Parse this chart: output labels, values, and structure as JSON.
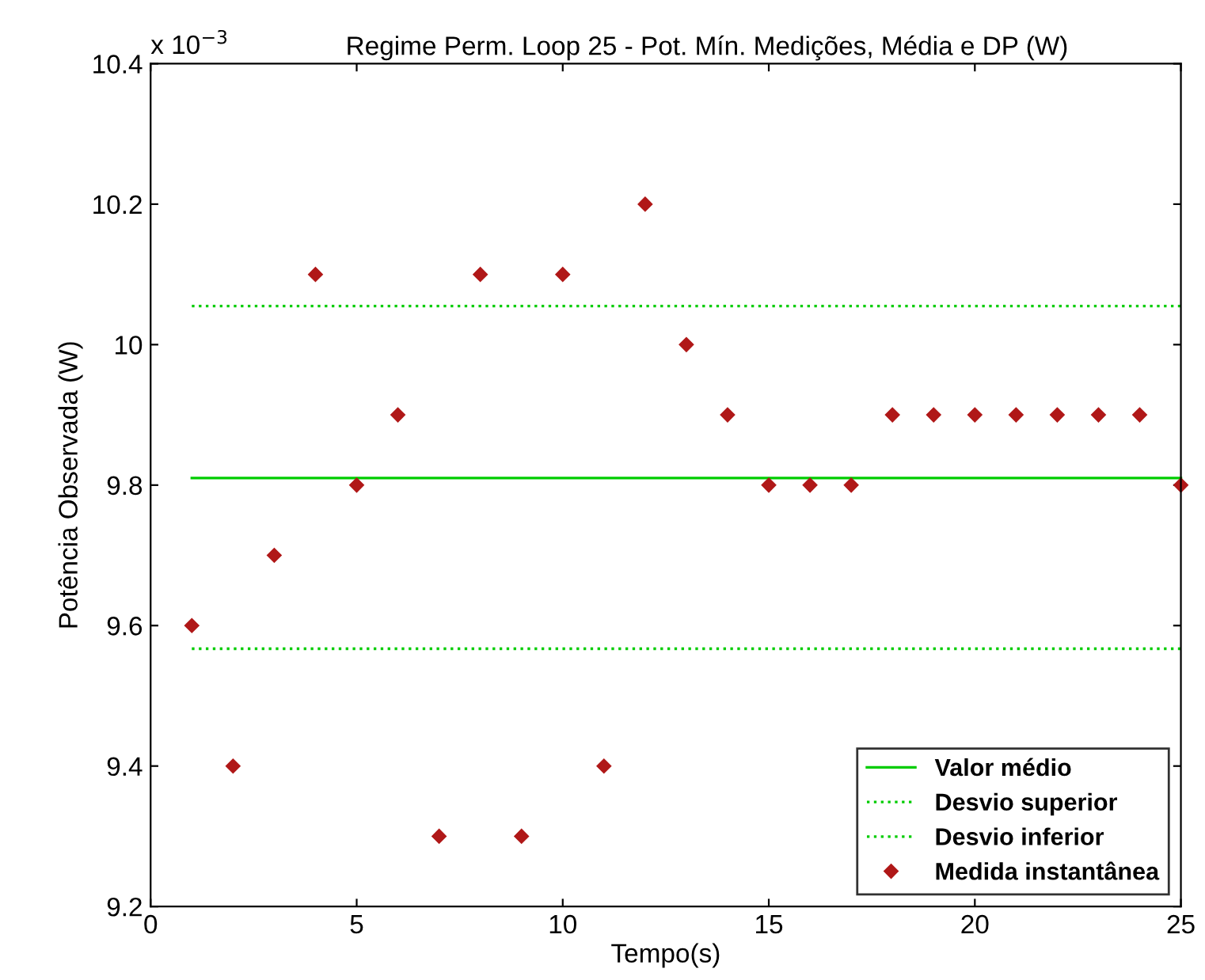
{
  "chart_data": {
    "type": "scatter",
    "title": "Regime Perm. Loop 25 - Pot. Mín. Medições, Média e DP (W)",
    "xlabel": "Tempo(s)",
    "ylabel": "Potência Observada (W)",
    "annotations": [
      "x 10$^{−3}$"
    ],
    "x": [
      1,
      2,
      3,
      4,
      5,
      6,
      7,
      8,
      9,
      10,
      11,
      12,
      13,
      14,
      15,
      16,
      17,
      18,
      19,
      20,
      21,
      22,
      23,
      24,
      25
    ],
    "series": [
      {
        "name": "Valor médio",
        "type": "line",
        "color": "#00cc00",
        "line_style": "solid",
        "marker": "none",
        "values": [
          9.81,
          9.81,
          9.81,
          9.81,
          9.81,
          9.81,
          9.81,
          9.81,
          9.81,
          9.81,
          9.81,
          9.81,
          9.81,
          9.81,
          9.81,
          9.81,
          9.81,
          9.81,
          9.81,
          9.81,
          9.81,
          9.81,
          9.81,
          9.81,
          9.81
        ]
      },
      {
        "name": "Desvio superior",
        "type": "line",
        "color": "#00cc00",
        "line_style": "dotted",
        "marker": "none",
        "values": [
          10.055,
          10.055,
          10.055,
          10.055,
          10.055,
          10.055,
          10.055,
          10.055,
          10.055,
          10.055,
          10.055,
          10.055,
          10.055,
          10.055,
          10.055,
          10.055,
          10.055,
          10.055,
          10.055,
          10.055,
          10.055,
          10.055,
          10.055,
          10.055,
          10.055
        ]
      },
      {
        "name": "Desvio inferior",
        "type": "line",
        "color": "#00cc00",
        "line_style": "dotted",
        "marker": "none",
        "values": [
          9.567,
          9.567,
          9.567,
          9.567,
          9.567,
          9.567,
          9.567,
          9.567,
          9.567,
          9.567,
          9.567,
          9.567,
          9.567,
          9.567,
          9.567,
          9.567,
          9.567,
          9.567,
          9.567,
          9.567,
          9.567,
          9.567,
          9.567,
          9.567,
          9.567
        ]
      },
      {
        "name": "Medida instantânea",
        "color": "#b01818",
        "marker": "diamond",
        "values": [
          9.6,
          9.4,
          9.7,
          10.1,
          9.8,
          9.9,
          9.3,
          10.1,
          9.3,
          10.1,
          9.4,
          10.2,
          10.0,
          9.9,
          9.8,
          9.8,
          9.8,
          9.9,
          9.9,
          9.9,
          9.9,
          9.9,
          9.9,
          9.9,
          9.8
        ]
      }
    ],
    "xlim": [
      0,
      25
    ],
    "xticks": [
      0,
      5,
      10,
      15,
      20,
      25
    ],
    "ylim": [
      9.2,
      10.4
    ],
    "yticks": [
      {
        "value": 9.2,
        "label": "9.2"
      },
      {
        "value": 9.4,
        "label": "9.4"
      },
      {
        "value": 9.6,
        "label": "9.6"
      },
      {
        "value": 9.8,
        "label": "9.8"
      },
      {
        "value": 10.0,
        "label": "10"
      },
      {
        "value": 10.2,
        "label": "10.2"
      },
      {
        "value": 10.4,
        "label": "10.4"
      }
    ],
    "grid": false,
    "legend": "bottom right"
  }
}
